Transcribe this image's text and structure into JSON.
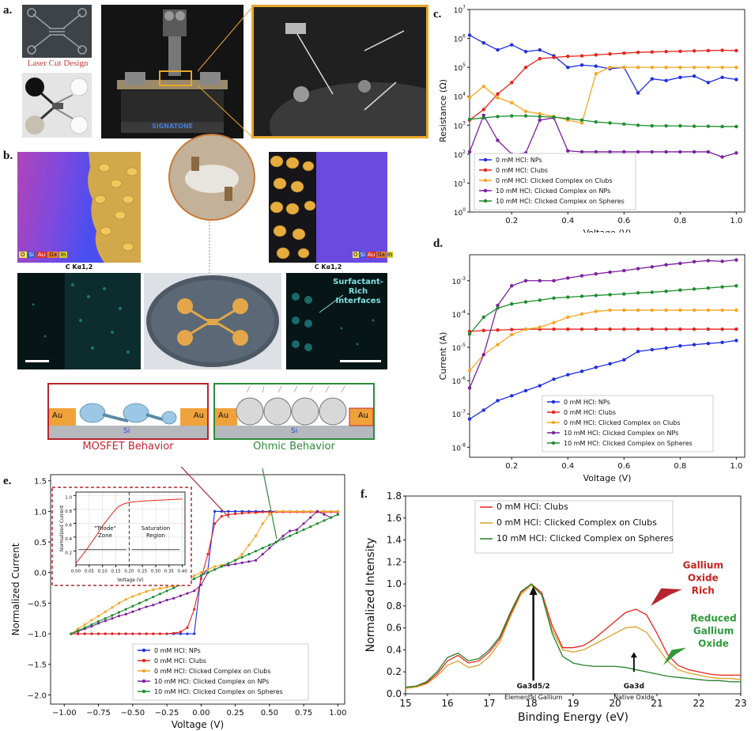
{
  "panel_labels": {
    "a": "a.",
    "b": "b.",
    "c": "c.",
    "d": "d.",
    "e": "e.",
    "f": "f."
  },
  "panel_a": {
    "laser_label": "Laser Cut Design",
    "instrument_brand": "SIGNATONE"
  },
  "panel_b": {
    "map_caption_left": "C Kα1,2",
    "map_caption_right": "C Kα1,2",
    "legend_elements": [
      "O",
      "Si",
      "Au",
      "Ga",
      "In"
    ],
    "legend_colors": [
      "#f2e35a",
      "#3b57d9",
      "#e0322b",
      "#e67a2e",
      "#d2c930"
    ],
    "surfactant_label": "Surfactant-Rich\nInterfaces"
  },
  "schematics": {
    "left": {
      "metal_left": "Au",
      "metal_right": "Au",
      "substrate": "Si",
      "behavior": "MOSFET Behavior",
      "border_color": "#b5262e"
    },
    "right": {
      "metal_left": "Au",
      "metal_right": "Au",
      "substrate": "Si",
      "behavior": "Ohmic Behavior",
      "border_color": "#2e8b3a"
    }
  },
  "legend_common": [
    "0 mM HCl: NPs",
    "0 mM HCl: Clubs",
    "0 mM HCl: Clicked Complex on Clubs",
    "10 mM HCl: Clicked Complex on NPs",
    "10 mM HCl: Clicked Complex on Spheres"
  ],
  "series_colors": [
    "#1f2fe0",
    "#e8231d",
    "#f5a623",
    "#7b1f9e",
    "#1e8c2e"
  ],
  "chart_data": [
    {
      "id": "c",
      "type": "line",
      "log_y": true,
      "xlabel": "Voltage (V)",
      "ylabel": "Resistance (Ω)",
      "xlim": [
        0.05,
        1.03
      ],
      "ylim": [
        1,
        10000000
      ],
      "xticks": [
        0.2,
        0.4,
        0.6,
        0.8,
        1.0
      ],
      "xticklabels": [
        "0.2",
        "0.4",
        "0.6",
        "0.8",
        "1.0"
      ],
      "yticks": [
        1,
        10,
        100,
        1000,
        10000,
        100000,
        1000000,
        10000000
      ],
      "yticklabels": [
        [
          "10",
          "0"
        ],
        [
          "10",
          "1"
        ],
        [
          "10",
          "2"
        ],
        [
          "10",
          "3"
        ],
        [
          "10",
          "4"
        ],
        [
          "10",
          "5"
        ],
        [
          "10",
          "6"
        ],
        [
          "10",
          "7"
        ]
      ],
      "legend_pos": "bottom-left",
      "x": [
        0.05,
        0.1,
        0.15,
        0.2,
        0.25,
        0.3,
        0.35,
        0.4,
        0.45,
        0.5,
        0.55,
        0.6,
        0.65,
        0.7,
        0.75,
        0.8,
        0.85,
        0.9,
        0.95,
        1.0
      ],
      "series": [
        {
          "name": "0 mM HCl: NPs",
          "values": [
            1300000,
            700000,
            400000,
            600000,
            350000,
            400000,
            250000,
            100000,
            120000,
            110000,
            90000,
            100000,
            13000,
            40000,
            35000,
            45000,
            50000,
            30000,
            45000,
            38000
          ]
        },
        {
          "name": "0 mM HCl: Clubs",
          "values": [
            1500,
            3500,
            12000,
            30000,
            100000,
            200000,
            220000,
            240000,
            250000,
            270000,
            290000,
            310000,
            330000,
            340000,
            350000,
            360000,
            370000,
            380000,
            390000,
            380000
          ]
        },
        {
          "name": "0 mM HCl: Clicked Complex on Clubs",
          "values": [
            9000,
            22000,
            9000,
            6000,
            3000,
            2500,
            2000,
            1500,
            1200,
            60000,
            100000,
            100000,
            100000,
            100000,
            100000,
            100000,
            100000,
            100000,
            100000,
            100000
          ]
        },
        {
          "name": "10 mM HCl: Clicked Complex on NPs",
          "values": [
            120,
            2200,
            300,
            100,
            110,
            1500,
            1800,
            130,
            120,
            120,
            120,
            120,
            120,
            120,
            120,
            120,
            120,
            120,
            80,
            110
          ]
        },
        {
          "name": "10 mM HCl: Clicked Complex on Spheres",
          "values": [
            1600,
            1800,
            2000,
            2100,
            2100,
            2000,
            1900,
            1700,
            1500,
            1300,
            1200,
            1100,
            1000,
            950,
            950,
            950,
            920,
            920,
            900,
            900
          ]
        }
      ]
    },
    {
      "id": "d",
      "type": "line",
      "log_y": true,
      "xlabel": "Voltage (V)",
      "ylabel": "Current (A)",
      "xlim": [
        0.05,
        1.03
      ],
      "ylim": [
        5e-09,
        0.006
      ],
      "xticks": [
        0.2,
        0.4,
        0.6,
        0.8,
        1.0
      ],
      "xticklabels": [
        "0.2",
        "0.4",
        "0.6",
        "0.8",
        "1.0"
      ],
      "yticks": [
        1e-08,
        1e-07,
        1e-06,
        1e-05,
        0.0001,
        0.001
      ],
      "yticklabels": [
        [
          "10",
          "-8"
        ],
        [
          "10",
          "-7"
        ],
        [
          "10",
          "-6"
        ],
        [
          "10",
          "-5"
        ],
        [
          "10",
          "-4"
        ],
        [
          "10",
          "-3"
        ]
      ],
      "legend_pos": "bottom-right",
      "x": [
        0.05,
        0.1,
        0.15,
        0.2,
        0.25,
        0.3,
        0.35,
        0.4,
        0.45,
        0.5,
        0.55,
        0.6,
        0.65,
        0.7,
        0.75,
        0.8,
        0.85,
        0.9,
        0.95,
        1.0
      ],
      "series": [
        {
          "name": "0 mM HCl: NPs",
          "values": [
            7e-08,
            1.3e-07,
            2.5e-07,
            3.5e-07,
            5e-07,
            7e-07,
            1.1e-06,
            1.5e-06,
            1.9e-06,
            2.5e-06,
            3.2e-06,
            4.2e-06,
            7.5e-06,
            8.5e-06,
            9.5e-06,
            1.1e-05,
            1.2e-05,
            1.3e-05,
            1.4e-05,
            1.6e-05
          ]
        },
        {
          "name": "0 mM HCl: Clubs",
          "values": [
            3e-05,
            3.2e-05,
            3.3e-05,
            3.4e-05,
            3.5e-05,
            3.5e-05,
            3.5e-05,
            3.5e-05,
            3.5e-05,
            3.5e-05,
            3.5e-05,
            3.5e-05,
            3.5e-05,
            3.5e-05,
            3.5e-05,
            3.5e-05,
            3.5e-05,
            3.5e-05,
            3.5e-05,
            3.5e-05
          ]
        },
        {
          "name": "0 mM HCl: Clicked Complex on Clubs",
          "values": [
            2e-06,
            6e-06,
            1.2e-05,
            2.4e-05,
            3.5e-05,
            4e-05,
            5.5e-05,
            8e-05,
            0.0001,
            0.00012,
            0.00013,
            0.00013,
            0.00013,
            0.00013,
            0.00013,
            0.00013,
            0.00013,
            0.00013,
            0.00013,
            0.00013
          ]
        },
        {
          "name": "10 mM HCl: Clicked Complex on NPs",
          "values": [
            6e-07,
            6e-06,
            0.00018,
            0.0007,
            0.001,
            0.001,
            0.001,
            0.0012,
            0.0014,
            0.0016,
            0.0018,
            0.002,
            0.0023,
            0.0026,
            0.003,
            0.0033,
            0.0037,
            0.004,
            0.0038,
            0.0042
          ]
        },
        {
          "name": "10 mM HCl: Clicked Complex on Spheres",
          "values": [
            2.5e-05,
            8e-05,
            0.00015,
            0.0002,
            0.00023,
            0.00026,
            0.0003,
            0.00032,
            0.00034,
            0.00036,
            0.00038,
            0.0004,
            0.00043,
            0.00045,
            0.00048,
            0.00052,
            0.00056,
            0.0006,
            0.00065,
            0.0007
          ]
        }
      ]
    },
    {
      "id": "e",
      "type": "line",
      "xlabel": "Voltage (V)",
      "ylabel": "Normalized Current",
      "xlim": [
        -1.1,
        1.05
      ],
      "ylim": [
        -2.15,
        1.6
      ],
      "xticks": [
        -1.0,
        -0.75,
        -0.5,
        -0.25,
        0.0,
        0.25,
        0.5,
        0.75,
        1.0
      ],
      "xticklabels": [
        "−1.00",
        "−0.75",
        "−0.50",
        "−0.25",
        "0.00",
        "0.25",
        "0.50",
        "0.75",
        "1.00"
      ],
      "yticks": [
        -2.0,
        -1.5,
        -1.0,
        -0.5,
        0.0,
        0.5,
        1.0,
        1.5
      ],
      "yticklabels": [
        "−2.0",
        "−1.5",
        "−1.0",
        "−0.5",
        "0.0",
        "0.5",
        "1.0",
        "1.5"
      ],
      "legend_pos": "bottom-center",
      "x": [
        -0.95,
        -0.9,
        -0.85,
        -0.8,
        -0.75,
        -0.7,
        -0.65,
        -0.6,
        -0.55,
        -0.5,
        -0.45,
        -0.4,
        -0.35,
        -0.3,
        -0.25,
        -0.2,
        -0.15,
        -0.1,
        -0.05,
        0.0,
        0.05,
        0.1,
        0.15,
        0.2,
        0.25,
        0.3,
        0.35,
        0.4,
        0.45,
        0.5,
        0.55,
        0.6,
        0.65,
        0.7,
        0.75,
        0.8,
        0.85,
        0.9,
        0.95,
        1.0
      ],
      "series": [
        {
          "name": "0 mM HCl: NPs",
          "values": [
            -1.0,
            -1.0,
            -1.0,
            -1.0,
            -1.0,
            -1.0,
            -1.0,
            -1.0,
            -1.0,
            -1.0,
            -1.0,
            -1.0,
            -1.0,
            -1.0,
            -1.0,
            -1.0,
            -1.0,
            -1.0,
            -1.0,
            -0.05,
            0.05,
            1.0,
            1.0,
            1.0,
            1.0,
            1.0,
            1.0,
            1.0,
            1.0,
            1.0,
            1.0,
            1.0,
            1.0,
            1.0,
            1.0,
            1.0,
            1.0,
            1.0,
            1.0,
            1.0
          ]
        },
        {
          "name": "0 mM HCl: Clubs",
          "values": [
            -1.0,
            -1.0,
            -1.0,
            -1.0,
            -1.0,
            -1.0,
            -1.0,
            -1.0,
            -1.0,
            -1.0,
            -1.0,
            -1.0,
            -1.0,
            -1.0,
            -1.0,
            -0.99,
            -0.97,
            -0.9,
            -0.6,
            -0.1,
            0.3,
            0.8,
            0.92,
            0.95,
            0.96,
            0.97,
            0.98,
            0.98,
            0.99,
            0.99,
            0.99,
            0.99,
            0.99,
            0.99,
            0.99,
            0.99,
            0.99,
            0.99,
            0.99,
            0.99
          ]
        },
        {
          "name": "0 mM HCl: Clicked Complex on Clubs",
          "values": [
            -1.0,
            -0.92,
            -0.85,
            -0.78,
            -0.71,
            -0.64,
            -0.57,
            -0.5,
            -0.44,
            -0.39,
            -0.35,
            -0.31,
            -0.28,
            -0.26,
            -0.24,
            -0.22,
            -0.18,
            -0.12,
            -0.05,
            0.0,
            0.05,
            0.1,
            0.12,
            0.15,
            0.2,
            0.3,
            0.45,
            0.6,
            0.8,
            0.95,
            1.0,
            1.0,
            1.0,
            1.0,
            1.0,
            1.0,
            1.0,
            1.0,
            1.0,
            1.0
          ]
        },
        {
          "name": "10 mM HCl: Clicked Complex on NPs",
          "values": [
            -1.0,
            -0.96,
            -0.92,
            -0.88,
            -0.83,
            -0.79,
            -0.75,
            -0.71,
            -0.68,
            -0.64,
            -0.6,
            -0.56,
            -0.53,
            -0.49,
            -0.45,
            -0.42,
            -0.38,
            -0.34,
            -0.3,
            -0.2,
            0.0,
            0.05,
            0.1,
            0.12,
            0.14,
            0.16,
            0.18,
            0.2,
            0.3,
            0.4,
            0.5,
            0.6,
            0.68,
            0.7,
            0.8,
            0.9,
            1.0,
            0.95,
            0.9,
            0.95
          ]
        },
        {
          "name": "10 mM HCl: Clicked Complex on Spheres",
          "values": [
            -1.0,
            -0.95,
            -0.9,
            -0.85,
            -0.8,
            -0.75,
            -0.7,
            -0.65,
            -0.6,
            -0.55,
            -0.5,
            -0.45,
            -0.4,
            -0.35,
            -0.3,
            -0.25,
            -0.2,
            -0.15,
            -0.1,
            -0.05,
            0.0,
            0.05,
            0.1,
            0.15,
            0.2,
            0.25,
            0.3,
            0.35,
            0.4,
            0.45,
            0.5,
            0.55,
            0.6,
            0.65,
            0.7,
            0.75,
            0.8,
            0.85,
            0.9,
            0.95
          ]
        }
      ]
    },
    {
      "id": "e_inset",
      "type": "line",
      "xlabel": "Voltage (V)",
      "ylabel": "Normalized Current",
      "xlim": [
        0.0,
        0.41
      ],
      "ylim": [
        0.0,
        1.05
      ],
      "xticks": [
        0.0,
        0.05,
        0.1,
        0.15,
        0.2,
        0.25,
        0.3,
        0.35,
        0.4
      ],
      "xticklabels": [
        "0.00",
        "0.05",
        "0.10",
        "0.15",
        "0.20",
        "0.25",
        "0.30",
        "0.35",
        "0.40"
      ],
      "yticks": [
        0.2,
        0.4,
        0.6,
        0.8,
        1.0
      ],
      "yticklabels": [
        "0.2",
        "0.4",
        "0.6",
        "0.8",
        "1.0"
      ],
      "x": [
        0.0,
        0.02,
        0.04,
        0.06,
        0.08,
        0.1,
        0.12,
        0.14,
        0.16,
        0.18,
        0.2,
        0.22,
        0.25,
        0.3,
        0.35,
        0.4
      ],
      "series": [
        {
          "name": "Clubs",
          "values": [
            0.02,
            0.12,
            0.22,
            0.33,
            0.44,
            0.56,
            0.66,
            0.76,
            0.84,
            0.88,
            0.9,
            0.91,
            0.92,
            0.93,
            0.94,
            0.95
          ]
        }
      ],
      "annotations": {
        "triode": "\"Triode\"\nZone",
        "saturation": "Saturation\nRegion"
      }
    },
    {
      "id": "f",
      "type": "line",
      "xlabel": "Binding Energy (eV)",
      "ylabel": "Normalized Intensity",
      "xlim": [
        15,
        23
      ],
      "ylim": [
        0,
        1.8
      ],
      "xticks": [
        15,
        16,
        17,
        18,
        19,
        20,
        21,
        22,
        23
      ],
      "xticklabels": [
        "15",
        "16",
        "17",
        "18",
        "19",
        "20",
        "21",
        "22",
        "23"
      ],
      "yticks": [
        0.0,
        0.2,
        0.4,
        0.6,
        0.8,
        1.0,
        1.2,
        1.4,
        1.6,
        1.8
      ],
      "yticklabels": [
        "0.0",
        "0.2",
        "0.4",
        "0.6",
        "0.8",
        "1.0",
        "1.2",
        "1.4",
        "1.6",
        "1.8"
      ],
      "legend_pos": "top-left",
      "x": [
        15.0,
        15.25,
        15.5,
        15.75,
        16.0,
        16.25,
        16.5,
        16.75,
        17.0,
        17.25,
        17.5,
        17.75,
        18.0,
        18.25,
        18.5,
        18.75,
        19.0,
        19.25,
        19.5,
        19.75,
        20.0,
        20.25,
        20.5,
        20.75,
        21.0,
        21.25,
        21.5,
        21.75,
        22.0,
        22.25,
        22.5,
        22.75,
        23.0
      ],
      "series": [
        {
          "name": "0 mM HCl: Clubs",
          "values": [
            0.06,
            0.07,
            0.1,
            0.18,
            0.3,
            0.35,
            0.28,
            0.3,
            0.38,
            0.5,
            0.72,
            0.92,
            1.0,
            0.92,
            0.62,
            0.42,
            0.42,
            0.44,
            0.5,
            0.58,
            0.66,
            0.74,
            0.77,
            0.72,
            0.55,
            0.36,
            0.26,
            0.22,
            0.2,
            0.18,
            0.17,
            0.17,
            0.17
          ]
        },
        {
          "name": "0 mM HCl: Clicked Complex on Clubs",
          "values": [
            0.05,
            0.06,
            0.09,
            0.16,
            0.26,
            0.3,
            0.24,
            0.26,
            0.34,
            0.47,
            0.7,
            0.9,
            0.99,
            0.9,
            0.58,
            0.4,
            0.38,
            0.4,
            0.45,
            0.5,
            0.55,
            0.6,
            0.61,
            0.56,
            0.43,
            0.3,
            0.22,
            0.19,
            0.17,
            0.15,
            0.14,
            0.14,
            0.13
          ]
        },
        {
          "name": "10 mM HCl: Clicked Complex on Spheres",
          "values": [
            0.06,
            0.07,
            0.11,
            0.2,
            0.33,
            0.37,
            0.3,
            0.32,
            0.4,
            0.52,
            0.74,
            0.93,
            1.0,
            0.9,
            0.55,
            0.34,
            0.28,
            0.26,
            0.25,
            0.25,
            0.25,
            0.24,
            0.22,
            0.2,
            0.18,
            0.16,
            0.15,
            0.14,
            0.13,
            0.12,
            0.12,
            0.11,
            0.11
          ]
        }
      ],
      "annotations": {
        "ga_elemental": "Ga3d5/2",
        "ga_elemental_sub": "Elemental Gallium",
        "ga_oxide": "Ga3d",
        "ga_oxide_sub": "Native Oxide",
        "oxide_rich": "Gallium\nOxide\nRich",
        "reduced": "Reduced\nGallium\nOxide"
      }
    }
  ]
}
